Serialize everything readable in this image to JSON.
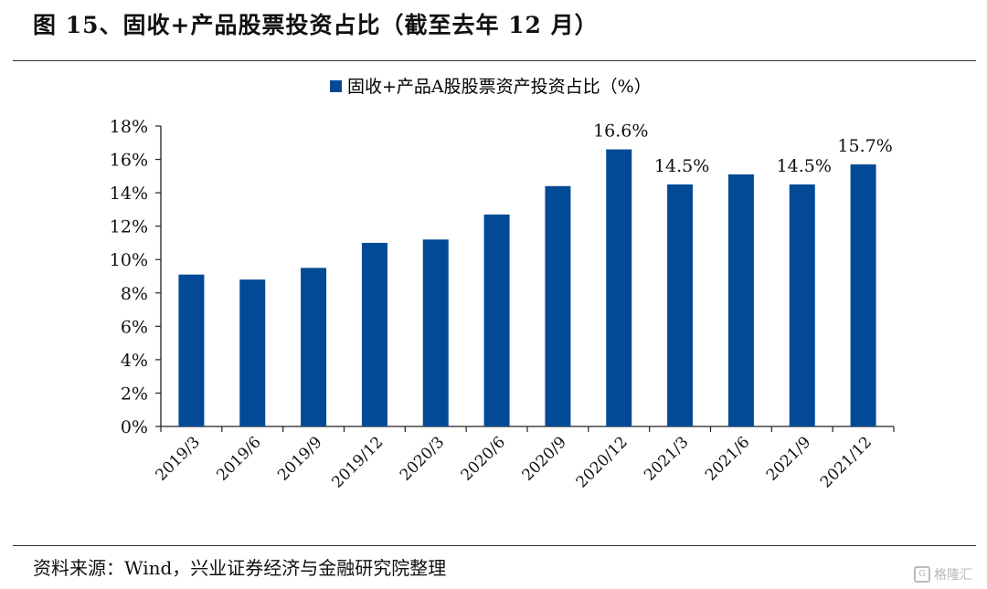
{
  "figure": {
    "title": "图 15、固收+产品股票投资占比（截至去年 12 月）",
    "source": "资料来源：Wind，兴业证券经济与金融研究院整理",
    "watermark": "格隆汇"
  },
  "chart_data": {
    "type": "bar",
    "categories": [
      "2019/3",
      "2019/6",
      "2019/9",
      "2019/12",
      "2020/3",
      "2020/6",
      "2020/9",
      "2020/12",
      "2021/3",
      "2021/6",
      "2021/9",
      "2021/12"
    ],
    "series": [
      {
        "name": "固收+产品A股股票资产投资占比（%）",
        "values": [
          9.1,
          8.8,
          9.5,
          11.0,
          11.2,
          12.7,
          14.4,
          16.6,
          14.5,
          15.1,
          14.5,
          15.7
        ],
        "color": "#034a96"
      }
    ],
    "data_labels": [
      {
        "category": "2020/12",
        "text": "16.6%"
      },
      {
        "category": "2021/3",
        "text": "14.5%"
      },
      {
        "category": "2021/9",
        "text": "14.5%"
      },
      {
        "category": "2021/12",
        "text": "15.7%"
      }
    ],
    "ylim": [
      0,
      18
    ],
    "yticks": [
      0,
      2,
      4,
      6,
      8,
      10,
      12,
      14,
      16,
      18
    ],
    "ytick_labels": [
      "0%",
      "2%",
      "4%",
      "6%",
      "8%",
      "10%",
      "12%",
      "14%",
      "16%",
      "18%"
    ],
    "grid": false,
    "legend_position": "top-center",
    "xlabel": "",
    "ylabel": ""
  }
}
